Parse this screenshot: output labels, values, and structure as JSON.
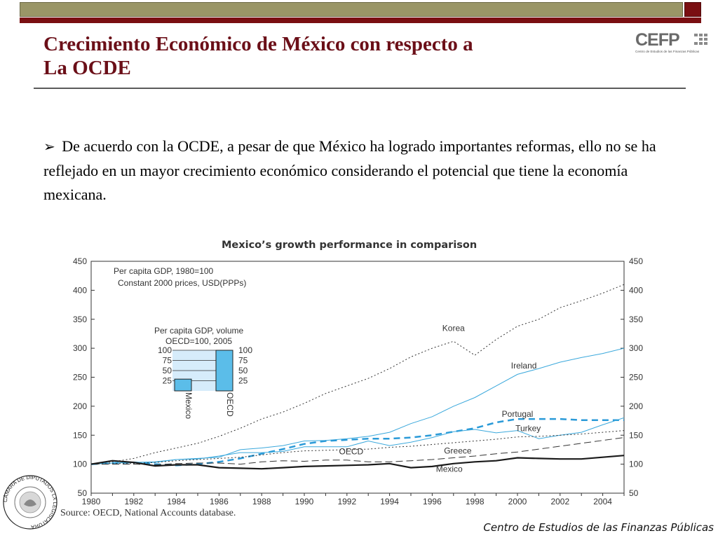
{
  "header": {
    "title_line1": "Crecimiento Económico de México con respecto a",
    "title_line2": "La OCDE",
    "colors": {
      "bar": "#9a9667",
      "accent": "#7a0f12",
      "title": "#6b0f18"
    }
  },
  "logo": {
    "name": "CEFP",
    "subtitle": "Centro de Estudios de las Finanzas Públicas"
  },
  "bullet": {
    "marker": "➢",
    "text": "De acuerdo con la OCDE, a pesar de que México ha logrado importantes reformas, ello no se ha reflejado en un mayor crecimiento económico considerando el potencial que tiene la economía mexicana."
  },
  "chart": {
    "title": "Mexico’s growth performance in comparison",
    "note_line1": "Per capita GDP,  1980=100",
    "note_line2": "Constant 2000 prices, USD(PPPs)",
    "inset_title_line1": "Per capita GDP, volume",
    "inset_title_line2": "OECD=100, 2005",
    "source": "Source: OECD, National Accounts database."
  },
  "chart_data": [
    {
      "type": "line",
      "title": "Mexico’s growth performance in comparison",
      "subtitle": "Per capita GDP,  1980=100 Constant 2000 prices, USD(PPPs)",
      "xlim": [
        1980,
        2005
      ],
      "ylim": [
        50,
        450
      ],
      "x_ticks": [
        "1980",
        "1982",
        "1984",
        "1986",
        "1988",
        "1990",
        "1992",
        "1994",
        "1996",
        "1998",
        "2000",
        "2002",
        "2004"
      ],
      "y_ticks": [
        "50",
        "100",
        "150",
        "200",
        "250",
        "300",
        "350",
        "400",
        "450"
      ],
      "grid": false,
      "series": [
        {
          "name": "Korea",
          "color": "#333333",
          "dash": "2,3",
          "width": 1,
          "x": [
            1980,
            1981,
            1982,
            1983,
            1984,
            1985,
            1986,
            1987,
            1988,
            1989,
            1990,
            1991,
            1992,
            1993,
            1994,
            1995,
            1996,
            1997,
            1998,
            1999,
            2000,
            2001,
            2002,
            2003,
            2004,
            2005
          ],
          "y": [
            100,
            104,
            110,
            120,
            128,
            136,
            148,
            162,
            178,
            190,
            205,
            222,
            235,
            248,
            265,
            285,
            300,
            312,
            288,
            315,
            338,
            350,
            370,
            382,
            395,
            410
          ]
        },
        {
          "name": "Ireland",
          "color": "#3aa8dc",
          "dash": "",
          "width": 1,
          "x": [
            1980,
            1981,
            1982,
            1983,
            1984,
            1985,
            1986,
            1987,
            1988,
            1989,
            1990,
            1991,
            1992,
            1993,
            1994,
            1995,
            1996,
            1997,
            1998,
            1999,
            2000,
            2001,
            2002,
            2003,
            2004,
            2005
          ],
          "y": [
            100,
            102,
            103,
            103,
            108,
            110,
            112,
            125,
            128,
            132,
            140,
            141,
            144,
            148,
            155,
            170,
            182,
            200,
            215,
            235,
            255,
            265,
            276,
            284,
            291,
            300
          ]
        },
        {
          "name": "Portugal",
          "color": "#2a9ad8",
          "dash": "9,6",
          "width": 2.5,
          "x": [
            1980,
            1981,
            1982,
            1983,
            1984,
            1985,
            1986,
            1987,
            1988,
            1989,
            1990,
            1991,
            1992,
            1993,
            1994,
            1995,
            1996,
            1997,
            1998,
            1999,
            2000,
            2001,
            2002,
            2003,
            2004,
            2005
          ],
          "y": [
            100,
            102,
            103,
            100,
            98,
            100,
            104,
            110,
            118,
            126,
            135,
            140,
            142,
            144,
            144,
            146,
            150,
            156,
            162,
            172,
            178,
            178,
            178,
            176,
            176,
            176
          ]
        },
        {
          "name": "Turkey",
          "color": "#3aa8dc",
          "dash": "",
          "width": 1,
          "x": [
            1980,
            1981,
            1982,
            1983,
            1984,
            1985,
            1986,
            1987,
            1988,
            1989,
            1990,
            1991,
            1992,
            1993,
            1994,
            1995,
            1996,
            1997,
            1998,
            1999,
            2000,
            2001,
            2002,
            2003,
            2004,
            2005
          ],
          "y": [
            100,
            102,
            103,
            104,
            108,
            109,
            114,
            120,
            120,
            122,
            130,
            130,
            130,
            140,
            132,
            138,
            146,
            156,
            160,
            154,
            158,
            144,
            150,
            155,
            168,
            180
          ]
        },
        {
          "name": "OECD",
          "color": "#333333",
          "dash": "2,3",
          "width": 1,
          "x": [
            1980,
            1981,
            1982,
            1983,
            1984,
            1985,
            1986,
            1987,
            1988,
            1989,
            1990,
            1991,
            1992,
            1993,
            1994,
            1995,
            1996,
            1997,
            1998,
            1999,
            2000,
            2001,
            2002,
            2003,
            2004,
            2005
          ],
          "y": [
            100,
            101,
            101,
            103,
            106,
            108,
            110,
            112,
            116,
            120,
            123,
            124,
            125,
            126,
            129,
            131,
            134,
            137,
            140,
            143,
            147,
            148,
            150,
            152,
            155,
            158
          ]
        },
        {
          "name": "Greece",
          "color": "#333333",
          "dash": "10,5",
          "width": 1,
          "x": [
            1980,
            1981,
            1982,
            1983,
            1984,
            1985,
            1986,
            1987,
            1988,
            1989,
            1990,
            1991,
            1992,
            1993,
            1994,
            1995,
            1996,
            1997,
            1998,
            1999,
            2000,
            2001,
            2002,
            2003,
            2004,
            2005
          ],
          "y": [
            100,
            100,
            100,
            99,
            101,
            102,
            102,
            100,
            104,
            106,
            105,
            107,
            107,
            104,
            104,
            106,
            108,
            111,
            114,
            118,
            121,
            126,
            131,
            136,
            141,
            146
          ]
        },
        {
          "name": "Mexico",
          "color": "#1a1a1a",
          "dash": "",
          "width": 2.2,
          "x": [
            1980,
            1981,
            1982,
            1983,
            1984,
            1985,
            1986,
            1987,
            1988,
            1989,
            1990,
            1991,
            1992,
            1993,
            1994,
            1995,
            1996,
            1997,
            1998,
            1999,
            2000,
            2001,
            2002,
            2003,
            2004,
            2005
          ],
          "y": [
            100,
            106,
            103,
            97,
            99,
            99,
            94,
            93,
            92,
            94,
            96,
            97,
            98,
            99,
            101,
            94,
            96,
            101,
            104,
            106,
            111,
            110,
            109,
            109,
            112,
            115
          ]
        }
      ]
    },
    {
      "type": "bar",
      "title": "Per capita GDP, volume OECD=100, 2005",
      "categories": [
        "Mexico",
        "OECD"
      ],
      "values": [
        29,
        100
      ],
      "ylim": [
        0,
        100
      ],
      "y_ticks": [
        "25",
        "50",
        "75",
        "100"
      ],
      "bar_color": "#5bbde9"
    }
  ],
  "footer": {
    "text": "Centro de Estudios de las Finanzas Públicas"
  },
  "emblem": {
    "text": "CÁMARA DE DIPUTADOS LX LEGISLATURA"
  }
}
